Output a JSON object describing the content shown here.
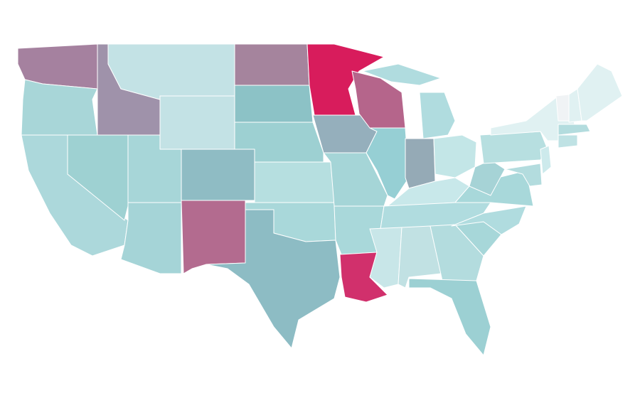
{
  "map": {
    "type": "choropleth",
    "stroke": "#ffffff",
    "background": "#ffffff",
    "regions": [
      {
        "color": "#a5819f"
      },
      {
        "color": "#a8d6d8"
      },
      {
        "color": "#acd8db"
      },
      {
        "color": "#9ed1d2"
      },
      {
        "color": "#9f92aa"
      },
      {
        "color": "#c3e2e5"
      },
      {
        "color": "#c3e2e5"
      },
      {
        "color": "#a7d6d8"
      },
      {
        "color": "#a5d4d7"
      },
      {
        "color": "#8fbcc4"
      },
      {
        "color": "#b36b8f"
      },
      {
        "color": "#a5849d"
      },
      {
        "color": "#8cc2c6"
      },
      {
        "color": "#9dd0d2"
      },
      {
        "color": "#b6dfe0"
      },
      {
        "color": "#a9d8da"
      },
      {
        "color": "#8dbcc4"
      },
      {
        "color": "#d81c5c"
      },
      {
        "color": "#95afbc"
      },
      {
        "color": "#a5d5d7"
      },
      {
        "color": "#a9d8da"
      },
      {
        "color": "#d1306c"
      },
      {
        "color": "#b5658b"
      },
      {
        "color": "#96cfd4"
      },
      {
        "color": "#b0dcdf"
      },
      {
        "color": "#b0dcdf"
      },
      {
        "color": "#95aab6"
      },
      {
        "color": "#c3e6e7"
      },
      {
        "color": "#c8e8ea"
      },
      {
        "color": "#b0dcdf"
      },
      {
        "color": "#c8e6e8"
      },
      {
        "color": "#c1e1e3"
      },
      {
        "color": "#b3dcde"
      },
      {
        "color": "#9cd0d3"
      },
      {
        "color": "#a7d7d9"
      },
      {
        "color": "#b0dcdf"
      },
      {
        "color": "#a8d8da"
      },
      {
        "color": "#a6d3d6"
      },
      {
        "color": "#b7dfe0"
      },
      {
        "color": "#e0f1f2"
      },
      {
        "color": "#f0f3f5"
      },
      {
        "color": "#e0f1f2"
      },
      {
        "color": "#e0f1f2"
      },
      {
        "color": "#b3dcde"
      },
      {
        "color": "#bfe2e4"
      },
      {
        "color": "#cdeaec"
      },
      {
        "color": "#b3dcde"
      }
    ]
  }
}
